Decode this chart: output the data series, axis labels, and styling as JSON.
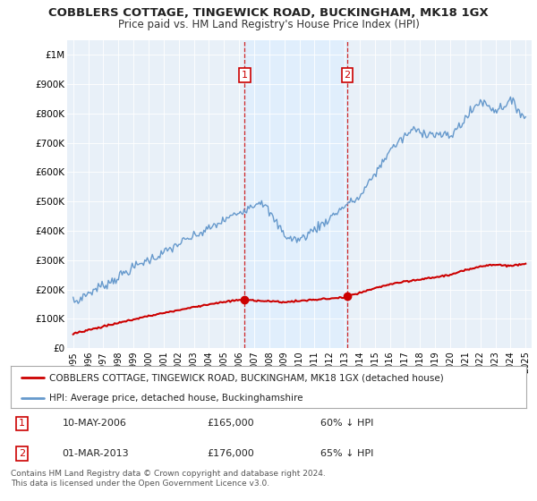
{
  "title": "COBBLERS COTTAGE, TINGEWICK ROAD, BUCKINGHAM, MK18 1GX",
  "subtitle": "Price paid vs. HM Land Registry's House Price Index (HPI)",
  "legend_label_red": "COBBLERS COTTAGE, TINGEWICK ROAD, BUCKINGHAM, MK18 1GX (detached house)",
  "legend_label_blue": "HPI: Average price, detached house, Buckinghamshire",
  "sale1_date": "10-MAY-2006",
  "sale1_price": 165000,
  "sale1_pct": "60% ↓ HPI",
  "sale1_year": 2006.37,
  "sale2_date": "01-MAR-2013",
  "sale2_price": 176000,
  "sale2_pct": "65% ↓ HPI",
  "sale2_year": 2013.17,
  "footnote": "Contains HM Land Registry data © Crown copyright and database right 2024.\nThis data is licensed under the Open Government Licence v3.0.",
  "ylim": [
    0,
    1050000
  ],
  "red_color": "#cc0000",
  "blue_color": "#6699cc",
  "vline_color": "#cc0000",
  "fill_color": "#ddeeff",
  "background_color": "#e8f0f8",
  "plot_bg_color": "#ffffff",
  "grid_color": "#cccccc",
  "title_fontsize": 9.5,
  "subtitle_fontsize": 8.5
}
